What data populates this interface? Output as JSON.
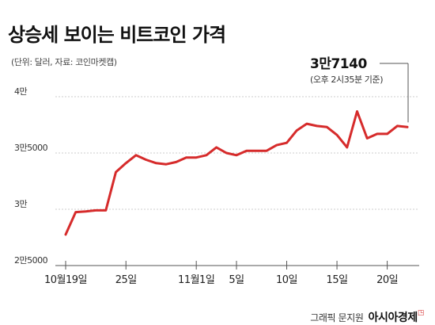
{
  "title": "상승세 보이는 비트코인 가격",
  "unit_note": "(단위: 달러, 자료: 코인마켓캡)",
  "credit": {
    "prefix": "그래픽 문지원",
    "brand": "아시아경제",
    "mark": "◳"
  },
  "colors": {
    "line": "#d62b2b",
    "axis": "#555555",
    "grid": "#cccccc",
    "background": "#ffffff"
  },
  "chart_data": {
    "type": "line",
    "title": "상승세 보이는 비트코인 가격",
    "ylim": [
      25000,
      40000
    ],
    "ytick_values": [
      40000,
      35000,
      30000,
      25000
    ],
    "ytick_labels": [
      "4만",
      "3만5000",
      "3만",
      "2만5000"
    ],
    "x_labels": [
      "10월19일",
      "25일",
      "11월1일",
      "5일",
      "10일",
      "15일",
      "20일"
    ],
    "x_label_index": [
      0,
      6,
      13,
      17,
      22,
      27,
      32
    ],
    "grid": "horizontal-dashed",
    "series": [
      {
        "values": [
          27750,
          29750,
          29800,
          29900,
          29900,
          33300,
          34100,
          34800,
          34400,
          34100,
          34000,
          34200,
          34600,
          34600,
          34800,
          35500,
          35000,
          34800,
          35200,
          35200,
          35200,
          35700,
          35900,
          37000,
          37600,
          37400,
          37300,
          36600,
          35500,
          38700,
          36300,
          36700,
          36700,
          37400,
          37300
        ]
      }
    ],
    "annotation": {
      "value": "3만7140",
      "note": "(오후 2시35분 기준)"
    }
  }
}
